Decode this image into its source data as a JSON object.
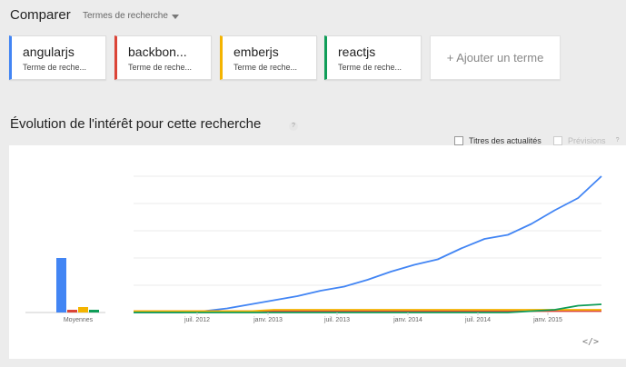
{
  "header": {
    "title": "Comparer",
    "terms_dropdown": "Termes de recherche"
  },
  "terms": [
    {
      "name": "angularjs",
      "sub": "Terme de reche...",
      "color": "#4285f4"
    },
    {
      "name": "backbon...",
      "sub": "Terme de reche...",
      "color": "#db4437"
    },
    {
      "name": "emberjs",
      "sub": "Terme de reche...",
      "color": "#f4b400"
    },
    {
      "name": "reactjs",
      "sub": "Terme de reche...",
      "color": "#0f9d58"
    }
  ],
  "add_term": "+ Ajouter un terme",
  "section": {
    "title": "Évolution de l'intérêt pour cette recherche",
    "help": "?"
  },
  "options": {
    "news_headlines": "Titres des actualités",
    "forecast": "Prévisions",
    "forecast_help": "?"
  },
  "embed": "</>",
  "chart_data": {
    "type": "line",
    "averages": {
      "label": "Moyennes",
      "values": [
        40,
        2,
        4,
        2
      ]
    },
    "x_ticks": [
      "juil. 2012",
      "janv. 2013",
      "juil. 2013",
      "janv. 2014",
      "juil. 2014",
      "janv. 2015"
    ],
    "x": [
      0,
      0.05,
      0.1,
      0.15,
      0.2,
      0.25,
      0.3,
      0.35,
      0.4,
      0.45,
      0.5,
      0.55,
      0.6,
      0.65,
      0.7,
      0.75,
      0.8,
      0.85,
      0.9,
      0.95,
      1.0
    ],
    "series": [
      {
        "name": "angularjs",
        "color": "#4285f4",
        "values": [
          0,
          0,
          0,
          1,
          3,
          6,
          9,
          12,
          16,
          19,
          24,
          30,
          35,
          39,
          47,
          54,
          57,
          65,
          75,
          84,
          100
        ]
      },
      {
        "name": "backbon...",
        "color": "#db4437",
        "values": [
          1,
          1,
          1,
          1,
          1,
          1,
          1,
          1,
          1,
          1,
          1,
          1,
          1,
          1,
          1,
          1,
          1,
          1,
          1,
          1,
          1
        ]
      },
      {
        "name": "emberjs",
        "color": "#f4b400",
        "values": [
          1,
          1,
          1,
          1,
          1,
          1,
          2,
          2,
          2,
          2,
          2,
          2,
          2,
          2,
          2,
          2,
          2,
          2,
          2,
          2,
          2
        ]
      },
      {
        "name": "reactjs",
        "color": "#0f9d58",
        "values": [
          0,
          0,
          0,
          0,
          0,
          0,
          0,
          0,
          0,
          0,
          0,
          0,
          0,
          0,
          0,
          0,
          0,
          1,
          2,
          5,
          6
        ]
      }
    ],
    "ylim": [
      0,
      100
    ],
    "grid": true
  }
}
